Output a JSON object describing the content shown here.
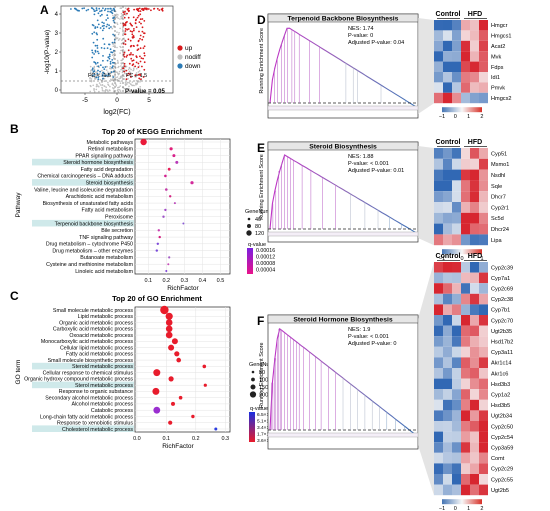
{
  "panels": {
    "A": {
      "letter": "A",
      "ylabel": "-log10(P-value)",
      "xlabel": "log2(FC)",
      "xticks": [
        "-5",
        "0",
        "5"
      ],
      "yticks": [
        "0",
        "1",
        "2",
        "3",
        "4"
      ],
      "legend": [
        {
          "label": "up",
          "color": "#d7191c"
        },
        {
          "label": "nodiff",
          "color": "#bfbfbf"
        },
        {
          "label": "down",
          "color": "#2c7bb6"
        }
      ],
      "fc_left": "FC < -1.5",
      "fc_right": "FC > 1.5",
      "pline": "P-value = 0.05"
    },
    "B": {
      "letter": "B",
      "title": "Top 20 of KEGG Enrichment",
      "ylabel": "Pathway",
      "xlabel": "RichFactor",
      "xticks": [
        "0.1",
        "0.2",
        "0.3",
        "0.4",
        "0.5"
      ],
      "terms": [
        "Metabolic pathways",
        "Retinol metabolism",
        "PPAR signaling pathway",
        "Steroid hormone biosynthesis",
        "Fatty acid degradation",
        "Chemical carcinogenesis – DNA adducts",
        "Steroid biosynthesis",
        "Valine, leucine and isoleucine degradation",
        "Arachidonic acid metabolism",
        "Biosynthesis of unsaturated fatty acids",
        "Fatty acid metabolism",
        "Peroxisome",
        "Terpenoid backbone biosynthesis",
        "Bile secretion",
        "TNF signaling pathway",
        "Drug metabolism – cytochrome P450",
        "Drug metabolism – other enzymes",
        "Butanoate metabolism",
        "Cysteine and methionine metabolism",
        "Linoleic acid metabolism"
      ],
      "highlighted": [
        3,
        6,
        12
      ],
      "size_title": "GeneNumber",
      "size_labels": [
        "40",
        "80",
        "120"
      ],
      "color_title": "q-value",
      "color_labels": [
        "0.00016",
        "0.00012",
        "0.00008",
        "0.00004"
      ]
    },
    "C": {
      "letter": "C",
      "title": "Top 20 of GO Enrichment",
      "ylabel": "GO term",
      "xlabel": "RichFactor",
      "xticks": [
        "0.0",
        "0.1",
        "0.2",
        "0.3"
      ],
      "terms": [
        "Small molecule metabolic process",
        "Lipid metabolic process",
        "Organic acid metabolic process",
        "Carboxylic acid metabolic process",
        "Oxoacid metabolic process",
        "Monocarboxylic acid metabolic process",
        "Cellular lipid metabolic process",
        "Fatty acid metabolic process",
        "Small molecule biosynthetic process",
        "Steroid metabolic process",
        "Cellular response to chemical stimulus",
        "Organic hydroxy compound metabolic process",
        "Sterol metabolic process",
        "Response to organic substance",
        "Secondary alcohol metabolic process",
        "Alcohol metabolic process",
        "Catabolic process",
        "Long-chain fatty acid metabolic process",
        "Response to xenobiotic stimulus",
        "Cholesterol metabolic process"
      ],
      "highlighted": [
        9,
        12,
        19
      ],
      "size_title": "GeneNumber",
      "size_labels": [
        "50",
        "100",
        "150",
        "200"
      ],
      "color_title": "q-value",
      "color_labels": [
        "6.5×10⁻¹⁰",
        "5.1×10⁻¹⁰",
        "3.4×10⁻¹⁰",
        "1.7×10⁻¹⁰",
        "3.6×10⁻²⁶"
      ]
    },
    "D": {
      "letter": "D",
      "title": "Terpenoid Backbone Biosynthesis",
      "ylabel": "Running Enrichment Score",
      "nes": "NES: 1.74",
      "pval": "P-value: 0",
      "adjp": "Adjusted P-value: 0.04",
      "control": "Control",
      "hfd": "HFD",
      "genes": [
        "Hmgcr",
        "Hmgcs1",
        "Acat2",
        "Mvk",
        "Fdps",
        "Idi1",
        "Pmvk",
        "Hmgcs2"
      ],
      "scale": [
        "−1",
        "0",
        "1",
        "2"
      ]
    },
    "E": {
      "letter": "E",
      "title": "Steroid Biosynthesis",
      "ylabel": "Running Enrichment Score",
      "nes": "NES: 1.88",
      "pval": "P-value: < 0.001",
      "adjp": "Adjusted P-value: 0.01",
      "control": "Control",
      "hfd": "HFD",
      "genes": [
        "Cyp51",
        "Msmo1",
        "Nsdhl",
        "Sqle",
        "Dhcr7",
        "Cyp2r1",
        "Sc5d",
        "Dhcr24",
        "Lipa"
      ],
      "scale": [
        "−1",
        "0",
        "1"
      ]
    },
    "F": {
      "letter": "F",
      "title": "Steroid Hormone Biosynthesis",
      "ylabel": "Running Enrichment Score",
      "nes": "NES: 1.9",
      "pval": "P-value: < 0.001",
      "adjp": "Adjusted P-value: 0",
      "control": "Control",
      "hfd": "HFD",
      "genes": [
        "Cyp2c39",
        "Cyp7a1",
        "Cyp2c69",
        "Cyp2c38",
        "Cyp7b1",
        "Cyp2c70",
        "Ugt2b35",
        "Hsd17b2",
        "Cyp3a11",
        "Akr1c14",
        "Akr1c6",
        "Hsd3b3",
        "Cyp1a2",
        "Hsd3b5",
        "Ugt2b34",
        "Cyp2c50",
        "Cyp2c54",
        "Cyp3a59",
        "Comt",
        "Cyp2c29",
        "Cyp2c55",
        "Ugt2b5"
      ],
      "scale": [
        "−1",
        "0",
        "1",
        "2"
      ]
    }
  },
  "colors": {
    "up": "#d7191c",
    "down": "#2c7bb6",
    "nodiff": "#bfbfbf",
    "highlight": "#cfe9ea",
    "gsea_line": "#8e5fa8",
    "heat_low": "#4575b4",
    "heat_high": "#d73027"
  }
}
